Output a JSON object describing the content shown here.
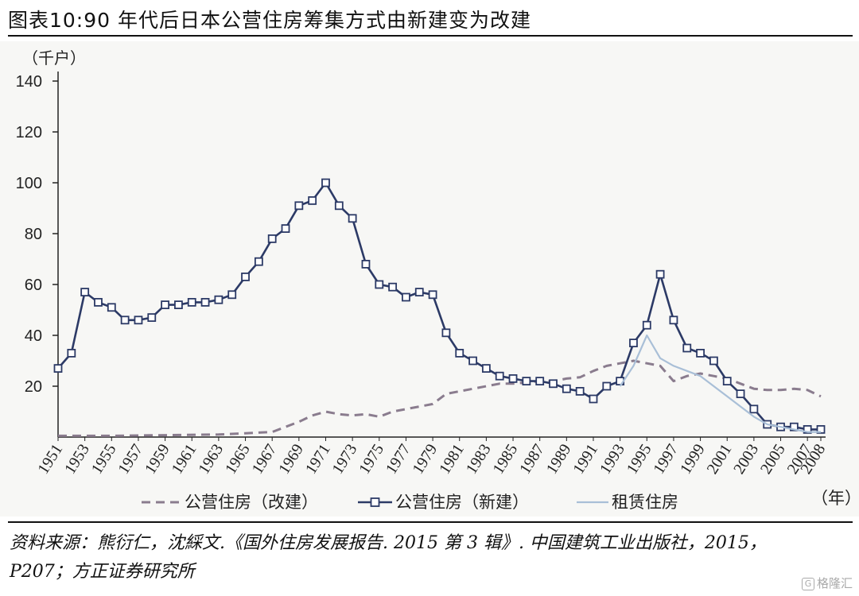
{
  "header": {
    "title": "图表10:90 年代后日本公营住房筹集方式由新建变为改建"
  },
  "footer": {
    "source": "资料来源：熊衍仁，沈綵文.《国外住房发展报告. 2015 第 3 辑》. 中国建筑工业出版社，2015，P207；方正证券研究所",
    "watermark": "格隆汇"
  },
  "chart_data": {
    "type": "line",
    "title": "",
    "ylabel": "（千户）",
    "xlabel": "（年）",
    "ylim": [
      0,
      140
    ],
    "yticks": [
      20,
      40,
      60,
      80,
      100,
      120,
      140
    ],
    "xlim": [
      1951,
      2008
    ],
    "xticks": [
      "1951",
      "1953",
      "1955",
      "1957",
      "1959",
      "1961",
      "1963",
      "1965",
      "1967",
      "1969",
      "1971",
      "1973",
      "1975",
      "1977",
      "1979",
      "1981",
      "1983",
      "1985",
      "1987",
      "1989",
      "1991",
      "1993",
      "1995",
      "1997",
      "1999",
      "2001",
      "2003",
      "2005",
      "2007",
      "2008"
    ],
    "grid": false,
    "legend_position": "bottom",
    "series": [
      {
        "name": "公营住房（改建）",
        "color": "#8a7c8e",
        "style": "dashed",
        "x": [
          1951,
          1955,
          1960,
          1963,
          1965,
          1967,
          1968,
          1969,
          1970,
          1971,
          1972,
          1973,
          1974,
          1975,
          1976,
          1977,
          1978,
          1979,
          1980,
          1981,
          1982,
          1983,
          1984,
          1985,
          1986,
          1987,
          1988,
          1989,
          1990,
          1991,
          1992,
          1993,
          1994,
          1995,
          1996,
          1997,
          1998,
          1999,
          2000,
          2001,
          2002,
          2003,
          2004,
          2005,
          2006,
          2007,
          2008
        ],
        "values": [
          0.5,
          0.5,
          0.8,
          1,
          1.5,
          2,
          4,
          6,
          8.5,
          10,
          9,
          8.5,
          9,
          8,
          10,
          11,
          12,
          13,
          17,
          18,
          19,
          20,
          21,
          21,
          21.5,
          22,
          22,
          23,
          23.5,
          26,
          28,
          29,
          30,
          29,
          28,
          22,
          24,
          25,
          24,
          23,
          21,
          19,
          18.5,
          18.5,
          19,
          18.5,
          16
        ]
      },
      {
        "name": "公营住房（新建）",
        "color": "#2c3a66",
        "style": "solid-square",
        "x": [
          1951,
          1952,
          1953,
          1954,
          1955,
          1956,
          1957,
          1958,
          1959,
          1960,
          1961,
          1962,
          1963,
          1964,
          1965,
          1966,
          1967,
          1968,
          1969,
          1970,
          1971,
          1972,
          1973,
          1974,
          1975,
          1976,
          1977,
          1978,
          1979,
          1980,
          1981,
          1982,
          1983,
          1984,
          1985,
          1986,
          1987,
          1988,
          1989,
          1990,
          1991,
          1992,
          1993,
          1994,
          1995,
          1996,
          1997,
          1998,
          1999,
          2000,
          2001,
          2002,
          2003,
          2004,
          2005,
          2006,
          2007,
          2008
        ],
        "values": [
          27,
          33,
          57,
          53,
          51,
          46,
          46,
          47,
          52,
          52,
          53,
          53,
          54,
          56,
          63,
          69,
          78,
          82,
          91,
          93,
          100,
          91,
          86,
          68,
          60,
          59,
          55,
          57,
          56,
          41,
          33,
          30,
          27,
          24,
          23,
          22,
          22,
          21,
          19,
          18,
          15,
          20,
          22,
          37,
          44,
          64,
          46,
          35,
          33,
          30,
          22,
          17,
          11,
          5,
          4,
          4,
          3,
          3
        ]
      },
      {
        "name": "租赁住房",
        "color": "#a9bfd7",
        "style": "solid",
        "x": [
          1993,
          1994,
          1995,
          1996,
          1997,
          1998,
          1999,
          2000,
          2001,
          2002,
          2003,
          2004,
          2005,
          2006,
          2007,
          2008
        ],
        "values": [
          20,
          28,
          40,
          31,
          28,
          26,
          24,
          20,
          16,
          12,
          8,
          5,
          4,
          3,
          2,
          2
        ]
      }
    ]
  }
}
